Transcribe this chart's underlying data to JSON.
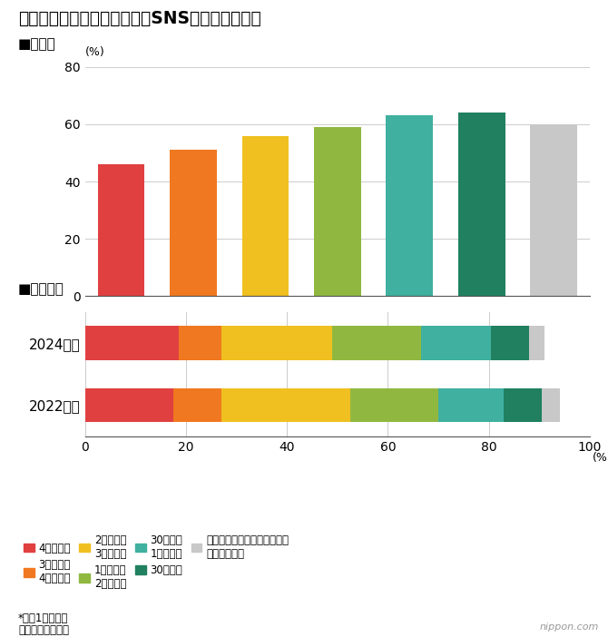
{
  "title": "中学生の数学の平均正答率とSNS・動画視聴時間",
  "top_label": "■正答率",
  "bottom_label": "■視聴時間",
  "bar_values": [
    46,
    51,
    56,
    59,
    63,
    64,
    60
  ],
  "bar_colors": [
    "#E04040",
    "#F07820",
    "#F0C020",
    "#90B840",
    "#40B0A0",
    "#208060",
    "#C8C8C8"
  ],
  "bar_ylim": [
    0,
    80
  ],
  "bar_yticks": [
    0,
    20,
    40,
    60,
    80
  ],
  "stacked_categories": [
    "4時間以上",
    "3時間以上\n4時間未満",
    "2時間以上\n3時間未満",
    "1時間以上\n2時間未満",
    "30分以上\n1時間未満",
    "30分未満",
    "携帯電話、スマートフォンを\n持っていない"
  ],
  "stacked_colors": [
    "#E04040",
    "#F07820",
    "#F0C020",
    "#90B840",
    "#40B0A0",
    "#208060",
    "#C8C8C8"
  ],
  "stacked_2024": [
    18.5,
    8.5,
    22.0,
    17.5,
    14.0,
    7.5,
    3.0
  ],
  "stacked_2022": [
    17.5,
    9.5,
    25.5,
    17.5,
    13.0,
    7.5,
    3.5
  ],
  "years": [
    "2024年度",
    "2022年度"
  ],
  "xlim": [
    0,
    100
  ],
  "xticks": [
    0,
    20,
    40,
    60,
    80,
    100
  ],
  "footnote1": "*平日1日あたり",
  "footnote2": "出所：文部科学省",
  "ylabel_top": "(%)"
}
